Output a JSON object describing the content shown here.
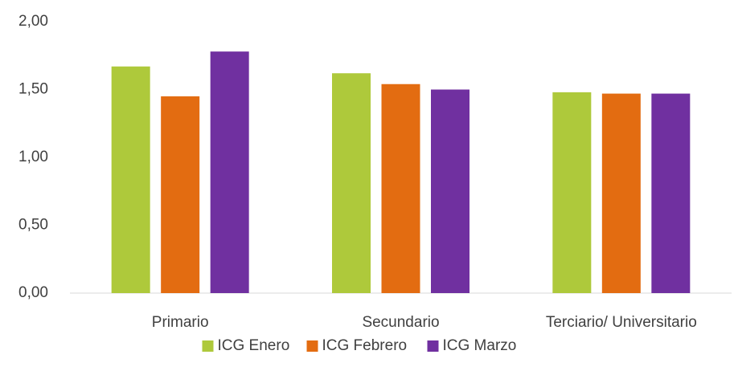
{
  "chart_data": {
    "type": "bar",
    "categories": [
      "Primario",
      "Secundario",
      "Terciario/ Universitario"
    ],
    "series": [
      {
        "name": "ICG Enero",
        "color": "#aec93b",
        "values": [
          1.67,
          1.62,
          1.48
        ]
      },
      {
        "name": "ICG Febrero",
        "color": "#e36c11",
        "values": [
          1.45,
          1.54,
          1.47
        ]
      },
      {
        "name": "ICG Marzo",
        "color": "#7030a0",
        "values": [
          1.78,
          1.5,
          1.47
        ]
      }
    ],
    "ylim": [
      0,
      2
    ],
    "yticks": [
      {
        "value": 0,
        "label": "0,00"
      },
      {
        "value": 0.5,
        "label": "0,50"
      },
      {
        "value": 1,
        "label": "1,00"
      },
      {
        "value": 1.5,
        "label": "1,50"
      },
      {
        "value": 2,
        "label": "2,00"
      }
    ],
    "grid": false,
    "legend": "bottom"
  }
}
